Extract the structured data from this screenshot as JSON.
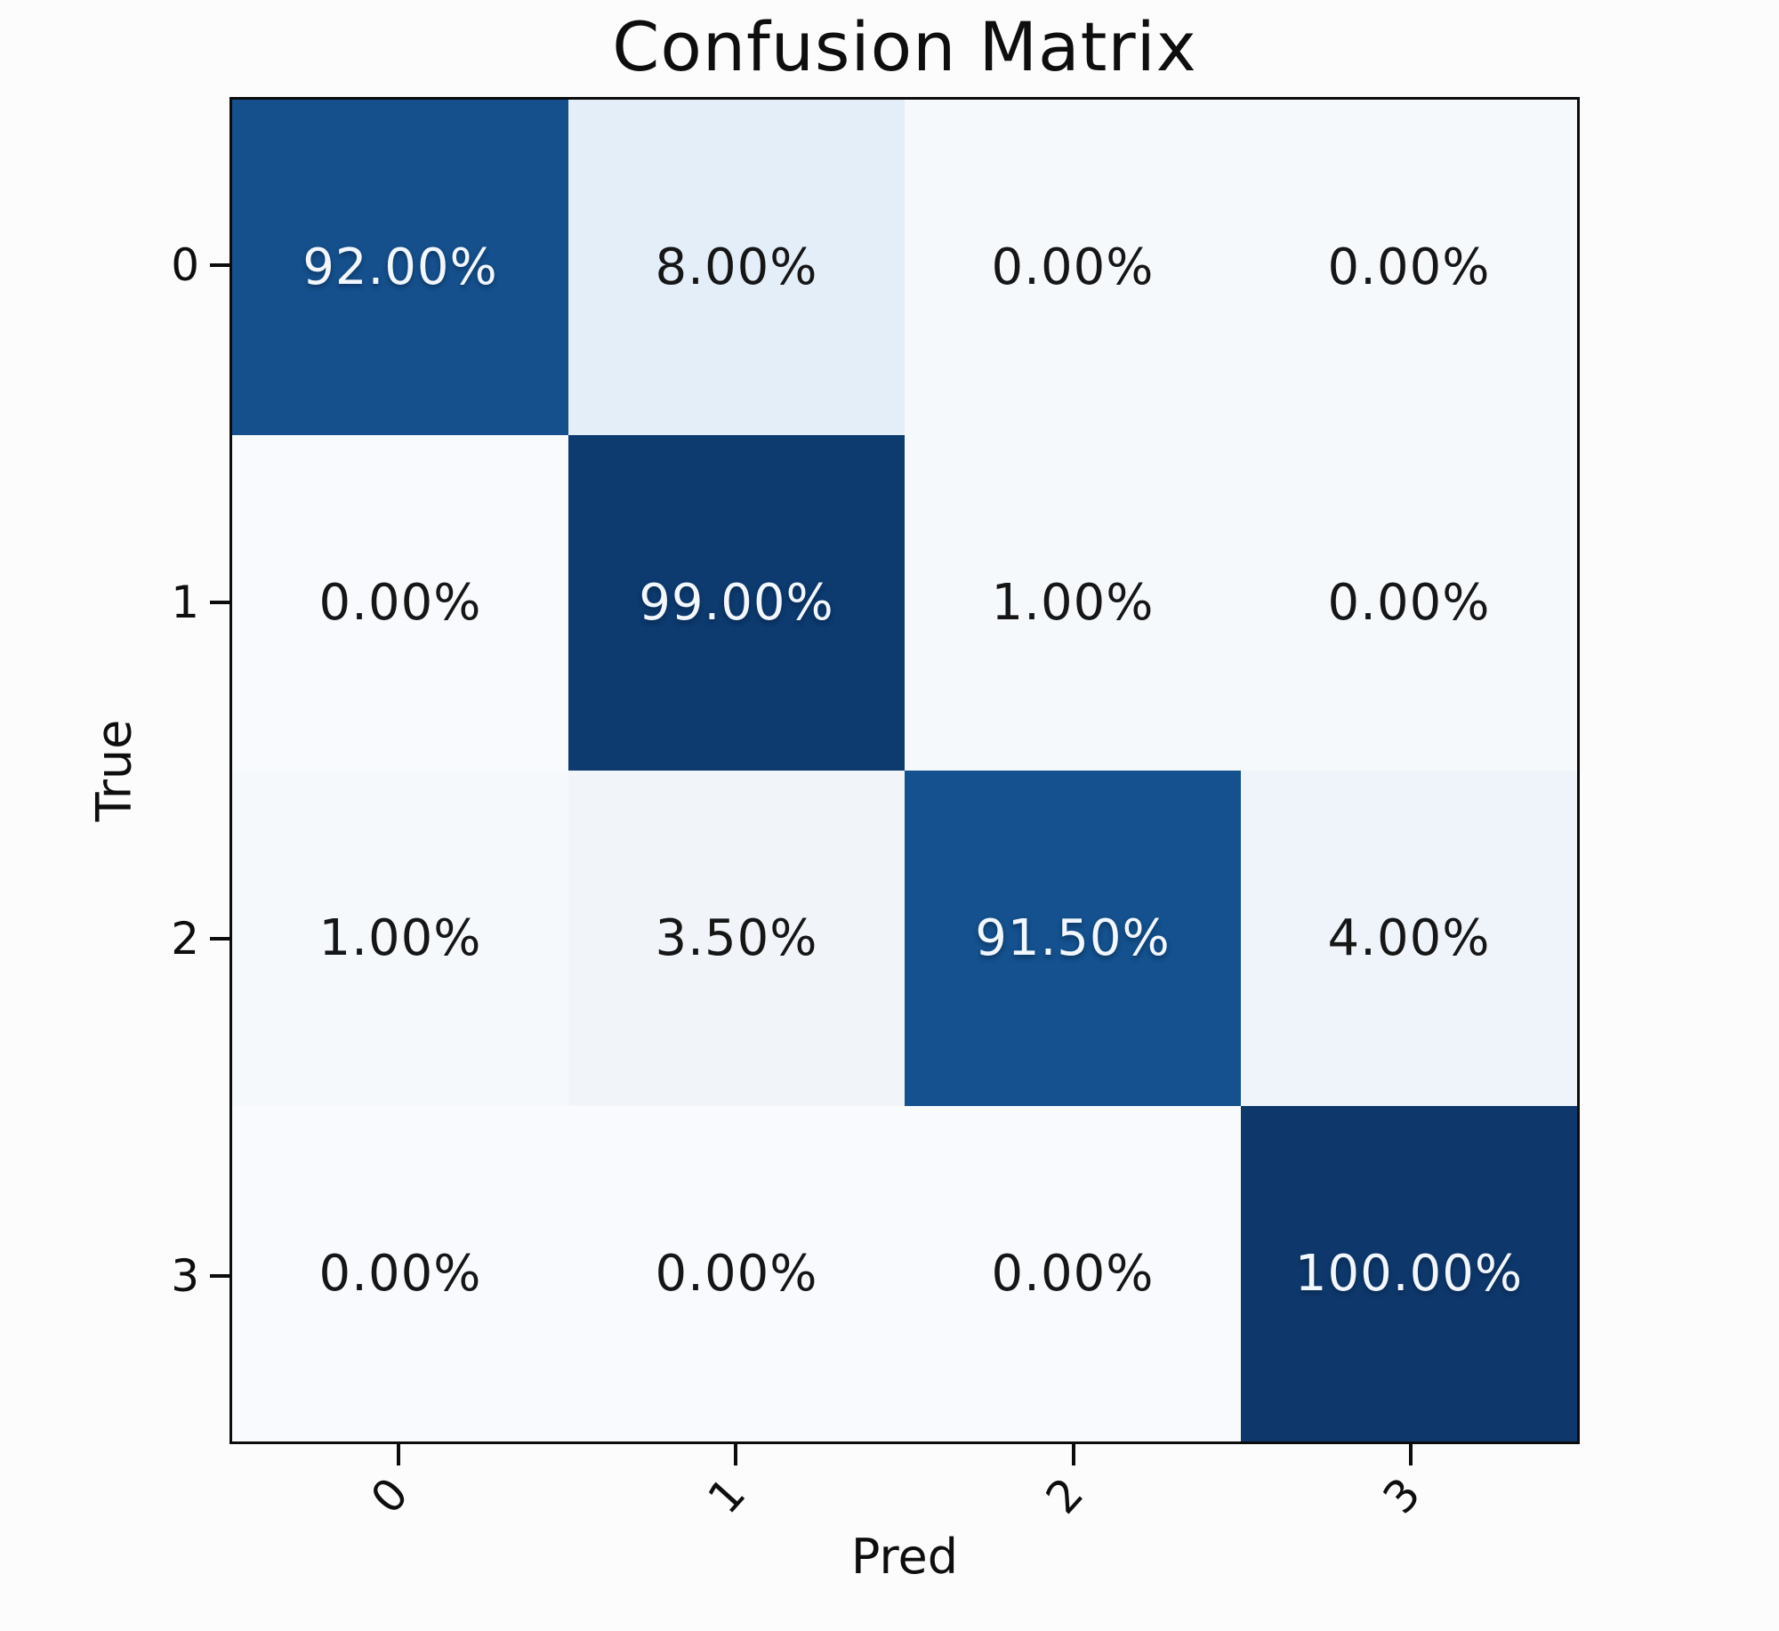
{
  "page": {
    "background_color": "#fcfcfc",
    "frame_color": "#0c0c0c",
    "text_color": "#0e0e0e"
  },
  "chart_data": {
    "type": "heatmap",
    "title": "Confusion Matrix",
    "xlabel": "Pred",
    "ylabel": "True",
    "x_tick_labels": [
      "0",
      "1",
      "2",
      "3"
    ],
    "y_tick_labels": [
      "0",
      "1",
      "2",
      "3"
    ],
    "colormap": "Blues",
    "grid": false,
    "legend": "none",
    "values_percent": [
      [
        92.0,
        8.0,
        0.0,
        0.0
      ],
      [
        0.0,
        99.0,
        1.0,
        0.0
      ],
      [
        1.0,
        3.5,
        91.5,
        4.0
      ],
      [
        0.0,
        0.0,
        0.0,
        100.0
      ]
    ],
    "cell_labels": [
      [
        "92.00%",
        "8.00%",
        "0.00%",
        "0.00%"
      ],
      [
        "0.00%",
        "99.00%",
        "1.00%",
        "0.00%"
      ],
      [
        "1.00%",
        "3.50%",
        "91.50%",
        "4.00%"
      ],
      [
        "0.00%",
        "0.00%",
        "0.00%",
        "100.00%"
      ]
    ],
    "cell_colors": [
      [
        "#15508d",
        "#e4eef8",
        "#f6f9fc",
        "#f6f9fc"
      ],
      [
        "#f8fafd",
        "#0d3a6f",
        "#f6f9fc",
        "#f6f9fc"
      ],
      [
        "#f6f9fc",
        "#f1f5fa",
        "#14518e",
        "#eef4fa"
      ],
      [
        "#f8fafd",
        "#f8fafd",
        "#f8fafd",
        "#0e386c"
      ]
    ],
    "dark_cell_threshold_percent": 50,
    "accent_dark_blue": "#0d3a6f",
    "accent_mid_blue": "#15508d",
    "accent_light_blue": "#e4eef8"
  }
}
